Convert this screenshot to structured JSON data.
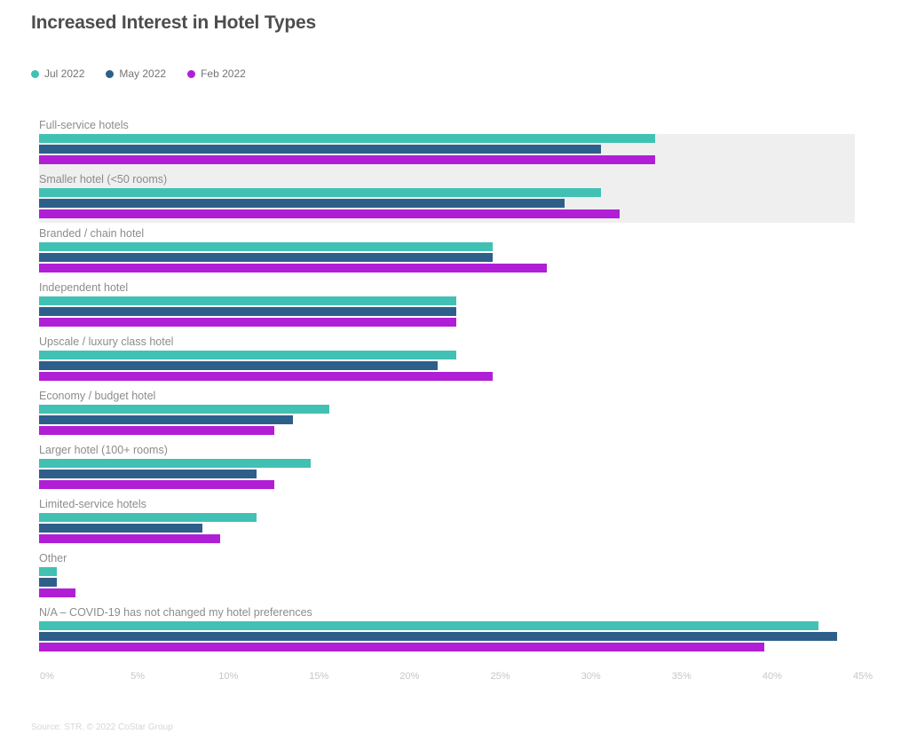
{
  "title": "Increased Interest in Hotel Types",
  "source": "Source: STR. © 2022 CoStar Group",
  "colors": {
    "jul_2022": "#41c1b4",
    "may_2022": "#2d5f8a",
    "feb_2022": "#b01fd6",
    "highlight_band": "#efefef",
    "title_text": "#4d4d4d",
    "category_text": "#8c8c8c",
    "axis_text": "#c6c6c6",
    "source_text": "#d6d6d6"
  },
  "chart_data": {
    "type": "bar",
    "orientation": "horizontal",
    "title": "Increased Interest in Hotel Types",
    "xlabel": "",
    "ylabel": "",
    "xlim": [
      0,
      45
    ],
    "grid": false,
    "legend_position": "top-left",
    "categories": [
      "Full-service hotels",
      "Smaller hotel (<50 rooms)",
      "Branded / chain hotel",
      "Independent hotel",
      "Upscale / luxury class hotel",
      "Economy / budget hotel",
      "Larger hotel (100+ rooms)",
      "Limited-service hotels",
      "Other",
      "N/A – COVID-19 has not changed my hotel preferences"
    ],
    "series": [
      {
        "name": "Jul 2022",
        "color": "#41c1b4",
        "values": [
          34,
          31,
          25,
          23,
          23,
          16,
          15,
          12,
          1,
          43
        ]
      },
      {
        "name": "May 2022",
        "color": "#2d5f8a",
        "values": [
          31,
          29,
          25,
          23,
          22,
          14,
          12,
          9,
          1,
          44
        ]
      },
      {
        "name": "Feb 2022",
        "color": "#b01fd6",
        "values": [
          34,
          32,
          28,
          23,
          25,
          13,
          13,
          10,
          2,
          40
        ]
      }
    ],
    "tick_labels": [
      "0%",
      "5%",
      "10%",
      "15%",
      "20%",
      "25%",
      "30%",
      "35%",
      "40%",
      "45%"
    ],
    "tick_values": [
      0,
      5,
      10,
      15,
      20,
      25,
      30,
      35,
      40,
      45
    ],
    "highlighted_rows": [
      0,
      1
    ],
    "values_unit": "%"
  }
}
